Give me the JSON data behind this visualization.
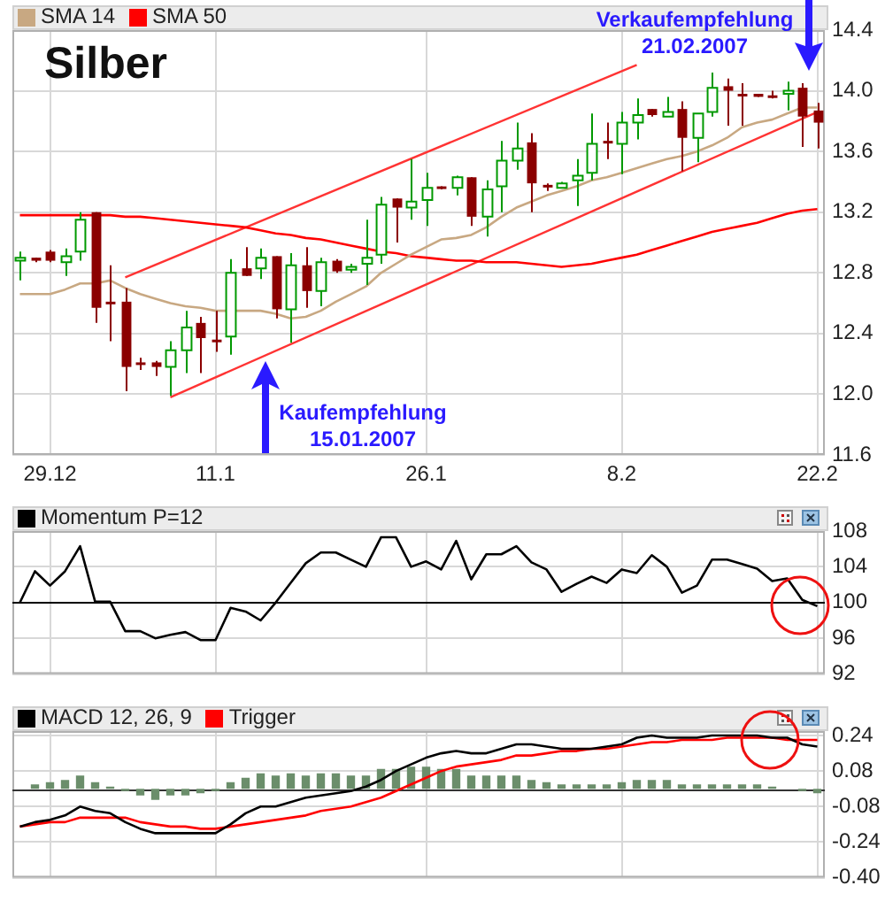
{
  "chart_data": [
    {
      "type": "candlestick",
      "title": "Silber",
      "legend": "top left",
      "grid": true,
      "marker": "none",
      "categories": [
        null,
        null,
        "29.12",
        null,
        null,
        null,
        null,
        null,
        null,
        null,
        null,
        null,
        null,
        "11.1",
        null,
        null,
        null,
        null,
        null,
        null,
        null,
        null,
        null,
        null,
        null,
        null,
        null,
        "26.1",
        null,
        null,
        null,
        null,
        null,
        null,
        null,
        null,
        null,
        null,
        null,
        null,
        "8.2",
        null,
        null,
        null,
        null,
        null,
        null,
        null,
        null,
        null,
        null,
        null,
        null,
        "22.2"
      ],
      "ohlc": [
        [
          12.88,
          12.94,
          12.75,
          12.9
        ],
        [
          12.9,
          12.9,
          12.87,
          12.88
        ],
        [
          12.94,
          12.95,
          12.87,
          12.88
        ],
        [
          12.87,
          12.96,
          12.78,
          12.91
        ],
        [
          12.94,
          13.2,
          12.88,
          13.15
        ],
        [
          13.2,
          13.2,
          12.47,
          12.57
        ],
        [
          12.61,
          12.85,
          12.35,
          12.6
        ],
        [
          12.61,
          12.7,
          12.02,
          12.18
        ],
        [
          12.21,
          12.24,
          12.16,
          12.2
        ],
        [
          12.21,
          12.22,
          12.12,
          12.18
        ],
        [
          12.18,
          12.35,
          11.99,
          12.29
        ],
        [
          12.29,
          12.55,
          12.14,
          12.44
        ],
        [
          12.47,
          12.51,
          12.14,
          12.37
        ],
        [
          12.36,
          12.55,
          12.28,
          12.35
        ],
        [
          12.38,
          12.89,
          12.26,
          12.8
        ],
        [
          12.83,
          12.97,
          12.78,
          12.78
        ],
        [
          12.83,
          12.96,
          12.76,
          12.9
        ],
        [
          12.91,
          12.91,
          12.5,
          12.56
        ],
        [
          12.56,
          12.93,
          12.34,
          12.85
        ],
        [
          12.85,
          12.97,
          12.57,
          12.68
        ],
        [
          12.68,
          12.9,
          12.58,
          12.87
        ],
        [
          12.88,
          12.89,
          12.8,
          12.81
        ],
        [
          12.82,
          12.86,
          12.8,
          12.84
        ],
        [
          12.86,
          13.15,
          12.72,
          12.9
        ],
        [
          12.92,
          13.3,
          12.86,
          13.25
        ],
        [
          13.29,
          13.29,
          13.0,
          13.23
        ],
        [
          13.23,
          13.55,
          13.15,
          13.27
        ],
        [
          13.28,
          13.46,
          13.11,
          13.36
        ],
        [
          13.37,
          13.37,
          13.35,
          13.36
        ],
        [
          13.36,
          13.44,
          13.31,
          13.43
        ],
        [
          13.43,
          13.43,
          13.11,
          13.17
        ],
        [
          13.17,
          13.41,
          13.04,
          13.35
        ],
        [
          13.37,
          13.67,
          13.2,
          13.54
        ],
        [
          13.54,
          13.79,
          13.48,
          13.62
        ],
        [
          13.66,
          13.72,
          13.2,
          13.39
        ],
        [
          13.38,
          13.39,
          13.34,
          13.37
        ],
        [
          13.36,
          13.4,
          13.36,
          13.39
        ],
        [
          13.41,
          13.55,
          13.24,
          13.44
        ],
        [
          13.46,
          13.85,
          13.41,
          13.65
        ],
        [
          13.67,
          13.79,
          13.55,
          13.66
        ],
        [
          13.65,
          13.86,
          13.45,
          13.79
        ],
        [
          13.79,
          13.95,
          13.68,
          13.84
        ],
        [
          13.88,
          13.88,
          13.83,
          13.84
        ],
        [
          13.83,
          13.96,
          13.83,
          13.86
        ],
        [
          13.88,
          13.93,
          13.47,
          13.69
        ],
        [
          13.69,
          13.85,
          13.53,
          13.85
        ],
        [
          13.86,
          14.12,
          13.83,
          14.02
        ],
        [
          14.03,
          14.08,
          13.77,
          14.0
        ],
        [
          13.98,
          14.05,
          13.77,
          13.97
        ],
        [
          13.98,
          13.98,
          13.96,
          13.96
        ],
        [
          13.97,
          14.0,
          13.95,
          13.96
        ],
        [
          13.98,
          14.06,
          13.87,
          14.0
        ],
        [
          14.02,
          14.05,
          13.63,
          13.83
        ],
        [
          13.87,
          13.92,
          13.62,
          13.79
        ]
      ],
      "series": [
        {
          "name": "SMA 14",
          "type": "line",
          "color": "#c8a882",
          "values": [
            12.66,
            12.66,
            12.66,
            12.69,
            12.73,
            12.73,
            12.75,
            12.7,
            12.66,
            12.63,
            12.6,
            12.58,
            12.57,
            12.55,
            12.55,
            12.55,
            12.55,
            12.53,
            12.5,
            12.51,
            12.55,
            12.61,
            12.66,
            12.71,
            12.8,
            12.86,
            12.92,
            12.97,
            13.02,
            13.03,
            13.05,
            13.1,
            13.17,
            13.23,
            13.27,
            13.31,
            13.34,
            13.37,
            13.41,
            13.43,
            13.46,
            13.49,
            13.52,
            13.55,
            13.57,
            13.6,
            13.64,
            13.69,
            13.76,
            13.79,
            13.81,
            13.85,
            13.89,
            13.89
          ]
        },
        {
          "name": "SMA 50",
          "type": "line",
          "color": "#ff0000",
          "values": [
            13.18,
            13.18,
            13.18,
            13.18,
            13.18,
            13.18,
            13.18,
            13.17,
            13.17,
            13.16,
            13.15,
            13.14,
            13.13,
            13.12,
            13.11,
            13.1,
            13.08,
            13.06,
            13.05,
            13.03,
            13.02,
            13.0,
            12.98,
            12.96,
            12.94,
            12.93,
            12.91,
            12.9,
            12.89,
            12.88,
            12.88,
            12.87,
            12.87,
            12.87,
            12.86,
            12.85,
            12.84,
            12.85,
            12.86,
            12.88,
            12.9,
            12.92,
            12.95,
            12.98,
            13.01,
            13.04,
            13.07,
            13.09,
            13.11,
            13.13,
            13.16,
            13.19,
            13.21,
            13.22
          ]
        },
        {
          "type": "line",
          "color": "#ff3333",
          "values": [
            null,
            null,
            null,
            null,
            null,
            null,
            null,
            12.77,
            null,
            null,
            null,
            null,
            null,
            null,
            null,
            null,
            null,
            null,
            null,
            null,
            null,
            null,
            null,
            null,
            null,
            null,
            null,
            null,
            null,
            null,
            null,
            null,
            null,
            null,
            null,
            null,
            null,
            null,
            null,
            null,
            null,
            14.17,
            null,
            null,
            null,
            null,
            null,
            null,
            null,
            null,
            null,
            null,
            null,
            null
          ]
        },
        {
          "type": "line",
          "color": "#ff3333",
          "values": [
            null,
            null,
            null,
            null,
            null,
            null,
            null,
            null,
            null,
            null,
            11.98,
            null,
            null,
            null,
            null,
            null,
            null,
            null,
            null,
            null,
            null,
            null,
            null,
            null,
            null,
            null,
            null,
            null,
            null,
            null,
            null,
            null,
            null,
            null,
            null,
            null,
            null,
            null,
            null,
            null,
            null,
            null,
            null,
            null,
            null,
            null,
            null,
            null,
            null,
            null,
            null,
            null,
            null,
            13.86
          ]
        }
      ],
      "ylim": [
        11.6,
        14.4
      ],
      "yticks": [
        11.6,
        {
          "value": 12,
          "label": "12.0"
        },
        12.4,
        12.8,
        13.2,
        13.6,
        {
          "value": 14,
          "label": "14.0"
        },
        14.4
      ],
      "annotations": [
        "Kaufempfehlung\n15.01.2007",
        "Verkaufempfehlung\n21.02.2007"
      ]
    },
    {
      "type": "line",
      "legend": "top left",
      "grid": true,
      "marker": "none",
      "tick_labels": "y",
      "categories": [
        null,
        null,
        "29.12",
        null,
        null,
        null,
        null,
        null,
        null,
        null,
        null,
        null,
        null,
        "11.1",
        null,
        null,
        null,
        null,
        null,
        null,
        null,
        null,
        null,
        null,
        null,
        null,
        null,
        "26.1",
        null,
        null,
        null,
        null,
        null,
        null,
        null,
        null,
        null,
        null,
        null,
        null,
        "8.2",
        null,
        null,
        null,
        null,
        null,
        null,
        null,
        null,
        null,
        null,
        null,
        null,
        "22.2"
      ],
      "series": [
        {
          "name": "Momentum P=12",
          "color": "#000000",
          "values": [
            100.0,
            103.5,
            101.9,
            103.5,
            106.3,
            100.1,
            100.1,
            96.8,
            96.8,
            96.0,
            96.4,
            96.7,
            95.8,
            95.8,
            99.4,
            99.0,
            98.0,
            100.0,
            102.2,
            104.4,
            105.6,
            105.6,
            104.8,
            104.0,
            107.3,
            107.3,
            104.0,
            104.6,
            103.7,
            106.9,
            102.6,
            105.4,
            105.4,
            106.3,
            104.5,
            103.7,
            101.2,
            102.1,
            102.9,
            102.2,
            103.7,
            103.3,
            105.3,
            104.0,
            101.1,
            101.9,
            104.8,
            104.8,
            104.3,
            103.8,
            102.4,
            102.7,
            100.3,
            99.6
          ]
        }
      ],
      "ylim": [
        92,
        108
      ],
      "yticks": [
        92,
        96,
        100,
        104,
        108
      ],
      "ref_lines": [
        {
          "axis": "y",
          "value": 100,
          "color": "#000000"
        }
      ]
    },
    {
      "type": "line",
      "legend": "top left",
      "grid": true,
      "marker": "none",
      "tick_labels": "y",
      "categories": [
        null,
        null,
        "29.12",
        null,
        null,
        null,
        null,
        null,
        null,
        null,
        null,
        null,
        null,
        "11.1",
        null,
        null,
        null,
        null,
        null,
        null,
        null,
        null,
        null,
        null,
        null,
        null,
        null,
        "26.1",
        null,
        null,
        null,
        null,
        null,
        null,
        null,
        null,
        null,
        null,
        null,
        null,
        "8.2",
        null,
        null,
        null,
        null,
        null,
        null,
        null,
        null,
        null,
        null,
        null,
        null,
        "22.2"
      ],
      "series": [
        {
          "type": "bar",
          "color": "#6b8e6b",
          "values": [
            null,
            0.02,
            0.03,
            0.04,
            0.06,
            0.03,
            0.01,
            -0.01,
            -0.03,
            -0.05,
            -0.03,
            -0.03,
            -0.02,
            -0.01,
            0.03,
            0.05,
            0.07,
            0.06,
            0.07,
            0.06,
            0.07,
            0.07,
            0.06,
            0.06,
            0.09,
            0.09,
            0.1,
            0.1,
            0.09,
            0.09,
            0.06,
            0.06,
            0.06,
            0.06,
            0.04,
            0.03,
            0.02,
            0.02,
            0.02,
            0.02,
            0.03,
            0.04,
            0.04,
            0.04,
            0.02,
            0.02,
            0.02,
            0.02,
            0.02,
            0.02,
            0.01,
            null,
            -0.01,
            -0.02
          ]
        },
        {
          "name": "MACD 12, 26, 9",
          "type": "line",
          "color": "#000000",
          "values": [
            -0.17,
            -0.15,
            -0.14,
            -0.12,
            -0.08,
            -0.1,
            -0.11,
            -0.15,
            -0.18,
            -0.2,
            -0.2,
            -0.2,
            -0.2,
            -0.2,
            -0.16,
            -0.11,
            -0.08,
            -0.08,
            -0.06,
            -0.04,
            -0.03,
            -0.02,
            -0.01,
            0.01,
            0.04,
            0.08,
            0.11,
            0.14,
            0.16,
            0.17,
            0.16,
            0.16,
            0.18,
            0.2,
            0.2,
            0.19,
            0.18,
            0.18,
            0.18,
            0.19,
            0.2,
            0.23,
            0.24,
            0.23,
            0.23,
            0.23,
            0.24,
            0.24,
            0.24,
            0.24,
            0.23,
            0.23,
            0.2,
            0.19
          ]
        },
        {
          "name": "Trigger",
          "type": "line",
          "color": "#ff0000",
          "values": [
            -0.17,
            -0.16,
            -0.15,
            -0.15,
            -0.13,
            -0.13,
            -0.13,
            -0.13,
            -0.15,
            -0.16,
            -0.17,
            -0.17,
            -0.18,
            -0.18,
            -0.17,
            -0.16,
            -0.15,
            -0.14,
            -0.13,
            -0.12,
            -0.1,
            -0.09,
            -0.08,
            -0.06,
            -0.04,
            -0.01,
            0.02,
            0.05,
            0.08,
            0.1,
            0.11,
            0.12,
            0.13,
            0.15,
            0.15,
            0.16,
            0.17,
            0.17,
            0.18,
            0.18,
            0.19,
            0.2,
            0.21,
            0.21,
            0.22,
            0.22,
            0.22,
            0.23,
            0.23,
            0.23,
            0.23,
            0.22,
            0.22,
            0.22
          ]
        }
      ],
      "ylim": [
        -0.4,
        0.26
      ],
      "yticks": [
        {
          "value": -0.4,
          "label": "-0.40"
        },
        {
          "value": -0.24,
          "label": "-0.24"
        },
        {
          "value": -0.08,
          "label": "-0.08"
        },
        {
          "value": 0.08,
          "label": "0.08"
        },
        {
          "value": 0.24,
          "label": "0.24"
        }
      ],
      "ref_lines": [
        {
          "axis": "y",
          "value": 0,
          "color": "#333333"
        }
      ]
    }
  ]
}
